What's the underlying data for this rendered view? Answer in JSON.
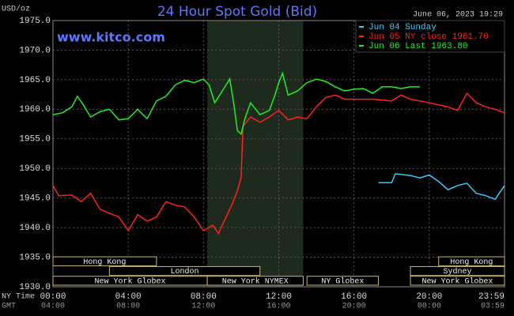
{
  "chart_data": {
    "type": "line",
    "title": "24 Hour Spot Gold (Bid)",
    "y_label": "USD/oz",
    "timestamp": "June 06, 2023 19:29",
    "website": "www.kitco.com",
    "x_row_label": "NY Time",
    "gmt_row_label": "GMT",
    "grid": true,
    "legend": "top-right",
    "xlim": [
      0,
      24
    ],
    "ylim": [
      1930,
      1975
    ],
    "yticks": [
      {
        "value": 1930,
        "label": "1930.0"
      },
      {
        "value": 1935,
        "label": "1935.0"
      },
      {
        "value": 1940,
        "label": "1940.0"
      },
      {
        "value": 1945,
        "label": "1945.0"
      },
      {
        "value": 1950,
        "label": "1950.0"
      },
      {
        "value": 1955,
        "label": "1955.0"
      },
      {
        "value": 1960,
        "label": "1960.0"
      },
      {
        "value": 1965,
        "label": "1965.0"
      },
      {
        "value": 1970,
        "label": "1970.0"
      },
      {
        "value": 1975,
        "label": "1975.0"
      }
    ],
    "xticks": [
      {
        "value": 0,
        "label": "00:00"
      },
      {
        "value": 4,
        "label": "04:00"
      },
      {
        "value": 8,
        "label": "08:00"
      },
      {
        "value": 12,
        "label": "12:00"
      },
      {
        "value": 16,
        "label": "16:00"
      },
      {
        "value": 20,
        "label": "20:00"
      },
      {
        "value": 23.98,
        "label": "23:59"
      }
    ],
    "gmt_ticks": [
      {
        "value": 0,
        "label": "04:00"
      },
      {
        "value": 4,
        "label": "08:00"
      },
      {
        "value": 8,
        "label": "12:00"
      },
      {
        "value": 12,
        "label": "16:00"
      },
      {
        "value": 16,
        "label": "20:00"
      },
      {
        "value": 20,
        "label": "00:00"
      },
      {
        "value": 23.98,
        "label": "03:59"
      }
    ],
    "sessions": [
      [
        {
          "label": "Hong Kong",
          "start": 0,
          "end": 5.5
        },
        {
          "label": "Hong Kong",
          "start": 20.5,
          "end": 24
        }
      ],
      [
        {
          "label": "London",
          "start": 3,
          "end": 11
        },
        {
          "label": "Sydney",
          "start": 19,
          "end": 24
        }
      ],
      [
        {
          "label": "New York Globex",
          "start": 0,
          "end": 8.2
        },
        {
          "label": "New York NYMEX",
          "start": 8.2,
          "end": 13.3,
          "highlight": true
        },
        {
          "label": "NY Globex",
          "start": 13.5,
          "end": 17.3
        },
        {
          "label": "New York Globex",
          "start": 19,
          "end": 24
        }
      ]
    ],
    "series": [
      {
        "name": "Jun 04 Sunday",
        "color": "#33ccff",
        "x": [
          17.3,
          18,
          18.2,
          19,
          19.5,
          20,
          20.5,
          21,
          21.5,
          22,
          22.5,
          23,
          23.5,
          24
        ],
        "values": [
          1947.6,
          1947.6,
          1949.1,
          1948.8,
          1948.4,
          1948.9,
          1947.8,
          1946.4,
          1947.1,
          1947.5,
          1945.8,
          1945.4,
          1944.8,
          1947.1
        ]
      },
      {
        "name": "Jun 05 NY close 1961.70",
        "color": "#ff2020",
        "x": [
          0,
          0.3,
          1,
          1.5,
          2,
          2.5,
          3,
          3.5,
          4,
          4.5,
          5,
          5.5,
          6,
          6.5,
          7,
          7.5,
          8,
          8.5,
          8.8,
          9,
          9.5,
          9.8,
          10,
          10.1,
          10.5,
          11,
          11.5,
          12,
          12.5,
          13,
          13.5,
          14,
          14.5,
          15,
          15.5,
          16,
          17,
          18,
          18.5,
          19,
          20,
          21,
          21.5,
          22,
          22.5,
          23,
          23.5,
          24
        ],
        "values": [
          1947.1,
          1945.4,
          1945.5,
          1944.4,
          1945.8,
          1943.1,
          1942.4,
          1941.8,
          1939.5,
          1942.2,
          1941.1,
          1941.8,
          1944.4,
          1943.8,
          1943.5,
          1941.8,
          1939.5,
          1940.4,
          1939.0,
          1940.4,
          1943.8,
          1946.2,
          1948.4,
          1957.1,
          1958.7,
          1957.8,
          1958.7,
          1959.8,
          1958.2,
          1958.7,
          1958.4,
          1960.4,
          1962.0,
          1962.4,
          1961.7,
          1961.7,
          1961.7,
          1961.4,
          1962.4,
          1961.7,
          1961.1,
          1960.4,
          1959.8,
          1962.7,
          1961.1,
          1960.4,
          1960.0,
          1959.4
        ]
      },
      {
        "name": "Jun 06 Last 1963.80",
        "color": "#22ee22",
        "x": [
          0,
          0.5,
          1,
          1.3,
          1.6,
          2,
          2.5,
          3,
          3.5,
          4,
          4.5,
          5,
          5.5,
          6,
          6.5,
          7,
          7.5,
          8,
          8.3,
          8.6,
          9,
          9.4,
          9.6,
          9.8,
          10,
          10.2,
          10.5,
          11,
          11.5,
          11.8,
          12,
          12.2,
          12.5,
          13,
          13.5,
          14,
          14.5,
          15,
          15.5,
          16,
          16.5,
          17,
          17.5,
          18,
          18.5,
          19,
          19.5
        ],
        "values": [
          1959.1,
          1959.4,
          1960.4,
          1962.2,
          1960.8,
          1958.7,
          1959.6,
          1960.0,
          1958.2,
          1958.4,
          1960.0,
          1958.4,
          1961.4,
          1962.2,
          1964.1,
          1964.9,
          1964.5,
          1965.1,
          1964.1,
          1961.1,
          1963.1,
          1965.1,
          1961.1,
          1956.4,
          1955.8,
          1958.4,
          1961.1,
          1959.1,
          1959.8,
          1962.4,
          1964.5,
          1966.1,
          1962.4,
          1963.1,
          1964.5,
          1965.1,
          1964.7,
          1963.8,
          1963.1,
          1963.4,
          1963.5,
          1962.7,
          1963.8,
          1963.8,
          1963.5,
          1963.8,
          1963.8
        ]
      }
    ]
  }
}
